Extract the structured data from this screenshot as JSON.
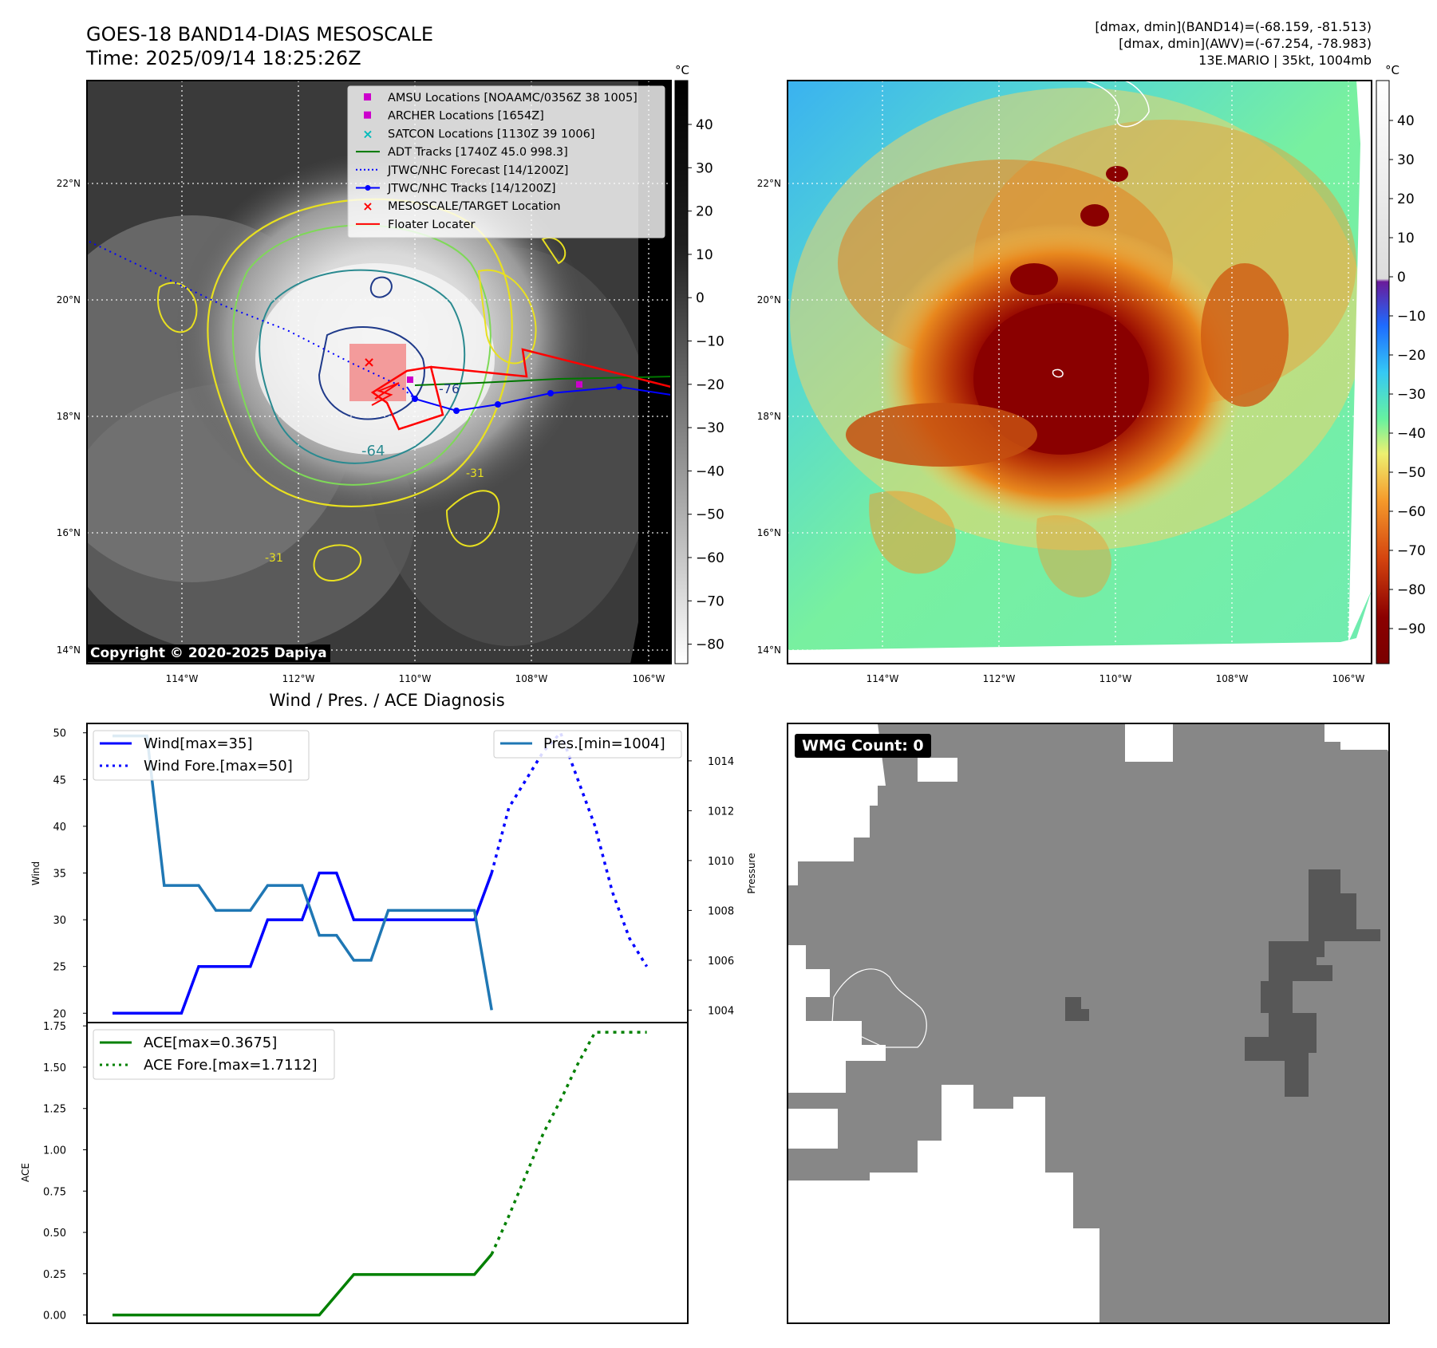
{
  "header": {
    "title_line1": "GOES-18 BAND14-DIAS MESOSCALE",
    "title_line2": "Time: 2025/09/14 18:25:26Z",
    "stats_line1": "[dmax, dmin](BAND14)=(-68.159, -81.513)",
    "stats_line2": "[dmax, dmin](AWV)=(-67.254, -78.983)",
    "stats_line3": "13E.MARIO | 35kt, 1004mb"
  },
  "map": {
    "lon_labels": [
      "114°W",
      "112°W",
      "110°W",
      "108°W",
      "106°W"
    ],
    "lat_labels": [
      "22°N",
      "20°N",
      "18°N",
      "16°N",
      "14°N"
    ],
    "copyright": "Copyright © 2020-2025 Dapiya",
    "contour_labels": [
      "-64",
      "-76",
      "-31",
      "-31"
    ],
    "legend": [
      {
        "label": "AMSU Locations [NOAAMC/0356Z 38 1005]",
        "color": "#cc00cc",
        "marker": "square"
      },
      {
        "label": "ARCHER Locations [1654Z]",
        "color": "#cc00cc",
        "marker": "square"
      },
      {
        "label": "SATCON Locations [1130Z 39 1006]",
        "color": "#00bbbb",
        "marker": "x"
      },
      {
        "label": "ADT Tracks [1740Z 45.0 998.3]",
        "color": "#007700",
        "marker": "line"
      },
      {
        "label": "JTWC/NHC Forecast [14/1200Z]",
        "color": "#0000ff",
        "marker": "dotted"
      },
      {
        "label": "JTWC/NHC Tracks [14/1200Z]",
        "color": "#0000ff",
        "marker": "line-dot"
      },
      {
        "label": "MESOSCALE/TARGET Location",
        "color": "#ff0000",
        "marker": "x"
      },
      {
        "label": "Floater Locater",
        "color": "#ff0000",
        "marker": "line"
      }
    ]
  },
  "colorbar_left": {
    "unit": "°C",
    "ticks": [
      "40",
      "30",
      "20",
      "10",
      "0",
      "−10",
      "−20",
      "−30",
      "−40",
      "−50",
      "−60",
      "−70",
      "−80"
    ]
  },
  "colorbar_right": {
    "unit": "°C",
    "ticks": [
      "40",
      "30",
      "20",
      "10",
      "0",
      "−10",
      "−20",
      "−30",
      "−40",
      "−50",
      "−60",
      "−70",
      "−80",
      "−90"
    ]
  },
  "wmg": {
    "label": "WMG Count: 0"
  },
  "colors": {
    "wind": "#0000ff",
    "pressure": "#1f77b4",
    "ace": "#008000"
  },
  "chart_data": [
    {
      "type": "line",
      "title": "Wind / Pres. / ACE Diagnosis",
      "ylabel": "Wind",
      "y2label": "Pressure",
      "ylim": [
        19,
        51
      ],
      "y2lim": [
        1003.5,
        1015.5
      ],
      "yticks": [
        20,
        25,
        30,
        35,
        40,
        45,
        50
      ],
      "y2ticks": [
        1004,
        1006,
        1008,
        1010,
        1012,
        1014
      ],
      "series": [
        {
          "name": "Wind[max=35]",
          "axis": "left",
          "style": "solid",
          "x": [
            0,
            1,
            2,
            3,
            4,
            5,
            6,
            7,
            8,
            9,
            10,
            11,
            12,
            13,
            14,
            15,
            16,
            17,
            18,
            19,
            20,
            21,
            22
          ],
          "values": [
            20,
            20,
            20,
            20,
            20,
            25,
            25,
            25,
            25,
            30,
            30,
            30,
            35,
            35,
            30,
            30,
            30,
            30,
            30,
            30,
            30,
            30,
            35
          ]
        },
        {
          "name": "Wind Fore.[max=50]",
          "axis": "left",
          "style": "dotted",
          "x": [
            22,
            23,
            24,
            25,
            26,
            27,
            28,
            29,
            30,
            31
          ],
          "values": [
            35,
            42,
            45,
            48,
            50,
            45,
            40,
            33,
            28,
            25
          ]
        },
        {
          "name": "Pres.[min=1004]",
          "axis": "right",
          "style": "solid",
          "x": [
            0,
            1,
            2,
            3,
            4,
            5,
            6,
            7,
            8,
            9,
            10,
            11,
            12,
            13,
            14,
            15,
            16,
            17,
            18,
            19,
            20,
            21,
            22
          ],
          "values": [
            1015,
            1015,
            1015,
            1009,
            1009,
            1009,
            1008,
            1008,
            1008,
            1009,
            1009,
            1009,
            1007,
            1007,
            1006,
            1006,
            1008,
            1008,
            1008,
            1008,
            1008,
            1008,
            1004
          ]
        }
      ]
    },
    {
      "type": "line",
      "ylabel": "ACE",
      "ylim": [
        -0.05,
        1.77
      ],
      "yticks": [
        "0.00",
        "0.25",
        "0.50",
        "0.75",
        "1.00",
        "1.25",
        "1.50",
        "1.75"
      ],
      "series": [
        {
          "name": "ACE[max=0.3675]",
          "style": "solid",
          "x": [
            0,
            1,
            2,
            3,
            4,
            5,
            6,
            7,
            8,
            9,
            10,
            11,
            12,
            13,
            14,
            15,
            16,
            17,
            18,
            19,
            20,
            21,
            22
          ],
          "values": [
            0,
            0,
            0,
            0,
            0,
            0,
            0,
            0,
            0,
            0,
            0,
            0,
            0,
            0.1225,
            0.245,
            0.245,
            0.245,
            0.245,
            0.245,
            0.245,
            0.245,
            0.245,
            0.3675
          ]
        },
        {
          "name": "ACE Fore.[max=1.7112]",
          "style": "dotted",
          "x": [
            22,
            23,
            24,
            25,
            26,
            27,
            28,
            29,
            30,
            31
          ],
          "values": [
            0.3675,
            0.6,
            0.85,
            1.1,
            1.3,
            1.52,
            1.7112,
            1.7112,
            1.7112,
            1.7112
          ]
        }
      ]
    }
  ]
}
